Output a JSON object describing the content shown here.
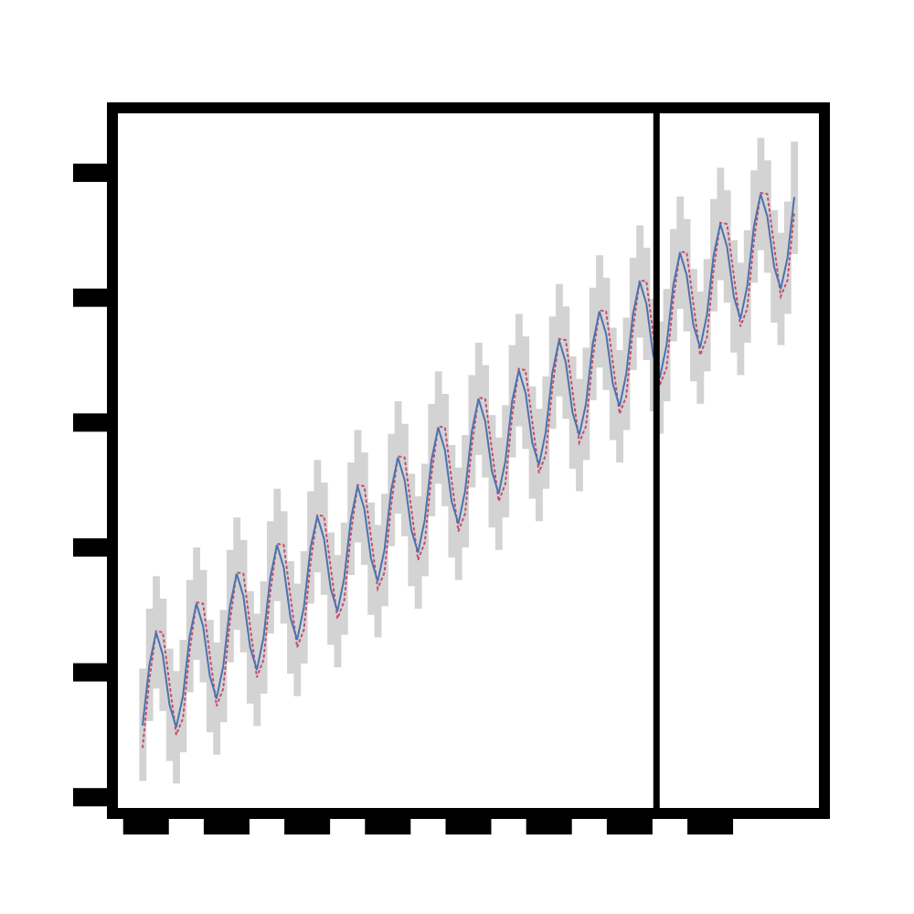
{
  "chart_data": {
    "type": "line",
    "x": [
      -1,
      1,
      3,
      5,
      7,
      9,
      11,
      13,
      15,
      17,
      19,
      21,
      23,
      25,
      27,
      29,
      31,
      33,
      35,
      37,
      39,
      41,
      43,
      45,
      47,
      49,
      51,
      53,
      55,
      57,
      59,
      61,
      63,
      65,
      67,
      69,
      71,
      73,
      75,
      77,
      79,
      81,
      83,
      85,
      87,
      89,
      91,
      93,
      95,
      97,
      99,
      101,
      103,
      105,
      107,
      109,
      111,
      113,
      115,
      117,
      119,
      121,
      123,
      125,
      127,
      129,
      131,
      133,
      135,
      137,
      139,
      141,
      143,
      145,
      147,
      149,
      151,
      153,
      155,
      157,
      159,
      161,
      163,
      165,
      167,
      169,
      171,
      173,
      175,
      177,
      179,
      181,
      183,
      185,
      187,
      189,
      191,
      193
    ],
    "series": [
      {
        "color": "#4c72b0",
        "interval": 0.45,
        "values": [
          0.58,
          1.06,
          1.32,
          1.14,
          0.74,
          0.56,
          0.81,
          1.29,
          1.55,
          1.37,
          0.97,
          0.79,
          1.05,
          1.53,
          1.79,
          1.61,
          1.2,
          1.02,
          1.28,
          1.76,
          2.02,
          1.84,
          1.44,
          1.26,
          1.52,
          2.0,
          2.25,
          2.07,
          1.67,
          1.49,
          1.75,
          2.23,
          2.49,
          2.31,
          1.91,
          1.73,
          1.98,
          2.46,
          2.72,
          2.54,
          2.14,
          1.96,
          2.22,
          2.7,
          2.96,
          2.78,
          2.37,
          2.19,
          2.45,
          2.93,
          3.19,
          3.01,
          2.61,
          2.43,
          2.69,
          3.17,
          3.42,
          3.24,
          2.84,
          2.66,
          2.92,
          3.4,
          3.66,
          3.48,
          3.08,
          2.9,
          3.15,
          3.63,
          3.89,
          3.71,
          3.31,
          3.13,
          3.39,
          3.87,
          4.13,
          3.95,
          3.54,
          3.36,
          3.62,
          4.1,
          4.36,
          4.18,
          3.78,
          3.6,
          3.86,
          4.34,
          4.59,
          4.41,
          4.01,
          3.83,
          4.09,
          4.57,
          4.83,
          4.65,
          4.25,
          4.07,
          4.32,
          4.8
        ]
      },
      {
        "color": "#c44e6a",
        "dotted": true,
        "values": [
          0.4,
          0.94,
          1.33,
          1.32,
          0.91,
          0.5,
          0.63,
          1.17,
          1.56,
          1.55,
          1.14,
          0.73,
          0.87,
          1.41,
          1.8,
          1.79,
          1.37,
          0.96,
          1.1,
          1.64,
          2.03,
          2.02,
          1.61,
          1.2,
          1.34,
          1.88,
          2.26,
          2.25,
          1.84,
          1.43,
          1.57,
          2.11,
          2.5,
          2.49,
          2.08,
          1.67,
          1.8,
          2.34,
          2.73,
          2.72,
          2.31,
          1.9,
          2.04,
          2.58,
          2.97,
          2.96,
          2.54,
          2.13,
          2.27,
          2.81,
          3.2,
          3.19,
          2.78,
          2.37,
          2.51,
          3.05,
          3.43,
          3.42,
          3.01,
          2.6,
          2.74,
          3.28,
          3.67,
          3.66,
          3.25,
          2.84,
          2.97,
          3.51,
          3.9,
          3.89,
          3.48,
          3.07,
          3.21,
          3.75,
          4.14,
          4.13,
          3.71,
          3.3,
          3.44,
          3.98,
          4.37,
          4.36,
          3.95,
          3.54,
          3.68,
          4.22,
          4.6,
          4.59,
          4.18,
          3.77,
          3.91,
          4.45,
          4.84,
          4.83,
          4.42,
          4.01,
          4.14,
          4.68
        ]
      }
    ],
    "band_color": "#d3d3d3",
    "vline_x": 152,
    "xlim": [
      -10,
      202
    ],
    "xticks": [
      0,
      24,
      48,
      72,
      96,
      120,
      144,
      168
    ],
    "ylim": [
      -0.13,
      5.52
    ],
    "yticks": [
      0,
      1,
      2,
      3,
      4,
      5
    ]
  }
}
